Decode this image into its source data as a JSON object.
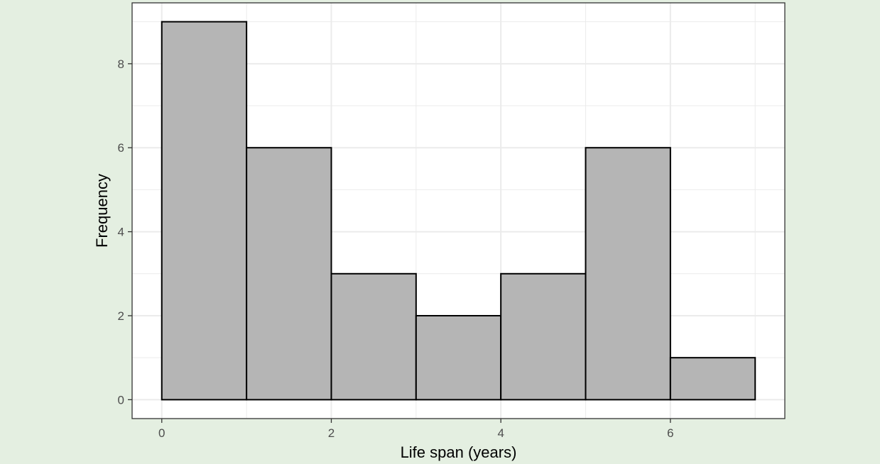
{
  "background_color": "#e4efe1",
  "panel_color": "#ffffff",
  "bar_fill": "#b5b5b5",
  "bar_stroke": "#000000",
  "grid_color": "#ebebeb",
  "chart_data": {
    "type": "bar",
    "subtype": "histogram",
    "bins": [
      {
        "start": 0,
        "end": 1,
        "count": 9
      },
      {
        "start": 1,
        "end": 2,
        "count": 6
      },
      {
        "start": 2,
        "end": 3,
        "count": 3
      },
      {
        "start": 3,
        "end": 4,
        "count": 2
      },
      {
        "start": 4,
        "end": 5,
        "count": 3
      },
      {
        "start": 5,
        "end": 6,
        "count": 6
      },
      {
        "start": 6,
        "end": 7,
        "count": 1
      }
    ],
    "title": "",
    "xlabel": "Life span (years)",
    "ylabel": "Frequency",
    "xlim": [
      -0.35,
      7.35
    ],
    "ylim": [
      -0.45,
      9.45
    ],
    "xticks": [
      0,
      2,
      4,
      6
    ],
    "yticks": [
      0,
      2,
      4,
      6,
      8
    ],
    "x_tick_labels": [
      "0",
      "2",
      "4",
      "6"
    ],
    "y_tick_labels": [
      "0",
      "2",
      "4",
      "6",
      "8"
    ],
    "grid": true,
    "legend": "none"
  }
}
